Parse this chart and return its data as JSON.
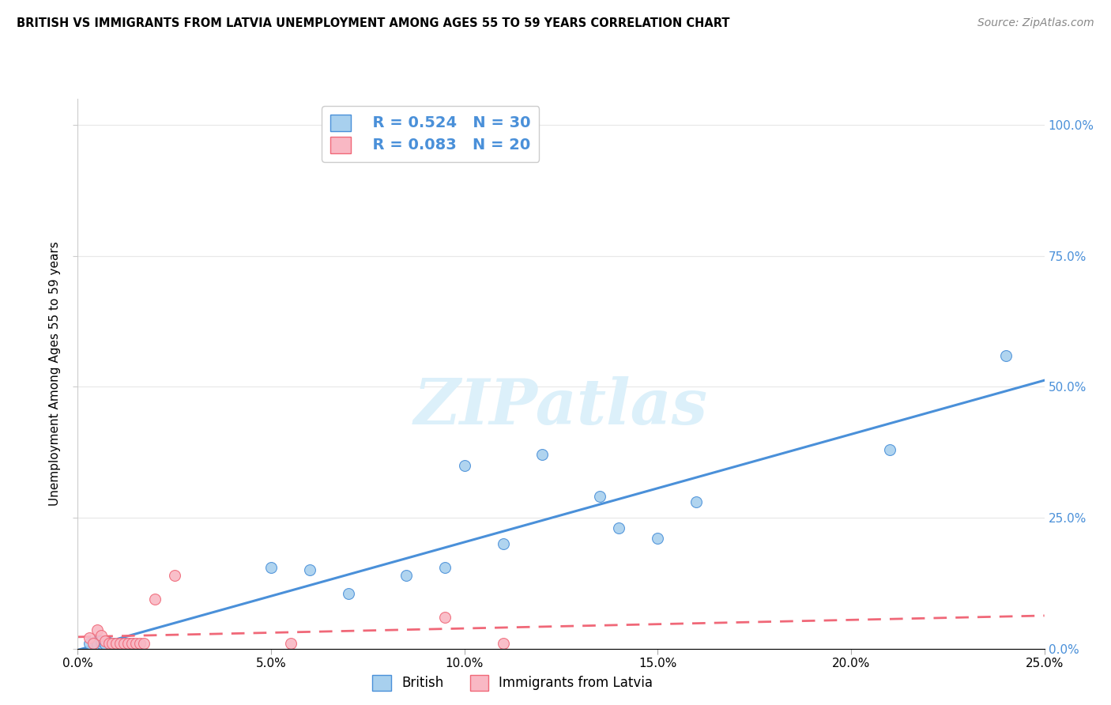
{
  "title": "BRITISH VS IMMIGRANTS FROM LATVIA UNEMPLOYMENT AMONG AGES 55 TO 59 YEARS CORRELATION CHART",
  "source": "Source: ZipAtlas.com",
  "ylabel": "Unemployment Among Ages 55 to 59 years",
  "xlim": [
    0.0,
    0.25
  ],
  "ylim": [
    0.0,
    1.05
  ],
  "xticks": [
    0.0,
    0.05,
    0.1,
    0.15,
    0.2,
    0.25
  ],
  "yticks": [
    0.0,
    0.25,
    0.5,
    0.75,
    1.0
  ],
  "legend_british_R": "R = 0.524",
  "legend_british_N": "N = 30",
  "legend_latvia_R": "R = 0.083",
  "legend_latvia_N": "N = 20",
  "british_color": "#A8D0EE",
  "latvia_color": "#F9B8C4",
  "british_line_color": "#4A90D9",
  "latvia_line_color": "#F06878",
  "watermark": "ZIPatlas",
  "watermark_color": "#DCF0FA",
  "british_x": [
    0.003,
    0.004,
    0.005,
    0.005,
    0.006,
    0.006,
    0.007,
    0.007,
    0.008,
    0.009,
    0.01,
    0.01,
    0.011,
    0.012,
    0.013,
    0.014,
    0.05,
    0.06,
    0.07,
    0.085,
    0.095,
    0.1,
    0.11,
    0.12,
    0.135,
    0.14,
    0.15,
    0.16,
    0.21,
    0.24
  ],
  "british_y": [
    0.01,
    0.012,
    0.015,
    0.008,
    0.01,
    0.014,
    0.01,
    0.008,
    0.012,
    0.01,
    0.01,
    0.008,
    0.008,
    0.01,
    0.01,
    0.01,
    0.155,
    0.15,
    0.105,
    0.14,
    0.155,
    0.35,
    0.2,
    0.37,
    0.29,
    0.23,
    0.21,
    0.28,
    0.38,
    0.56
  ],
  "latvia_x": [
    0.003,
    0.004,
    0.005,
    0.006,
    0.007,
    0.008,
    0.009,
    0.01,
    0.011,
    0.012,
    0.013,
    0.014,
    0.015,
    0.016,
    0.017,
    0.02,
    0.025,
    0.055,
    0.095,
    0.11
  ],
  "latvia_y": [
    0.02,
    0.01,
    0.035,
    0.025,
    0.015,
    0.01,
    0.01,
    0.01,
    0.01,
    0.01,
    0.01,
    0.01,
    0.01,
    0.01,
    0.01,
    0.095,
    0.14,
    0.01,
    0.06,
    0.01
  ],
  "background_color": "#FFFFFF",
  "grid_color": "#E8E8E8",
  "legend_box_color": "#FFFFFF",
  "legend_edge_color": "#CCCCCC"
}
